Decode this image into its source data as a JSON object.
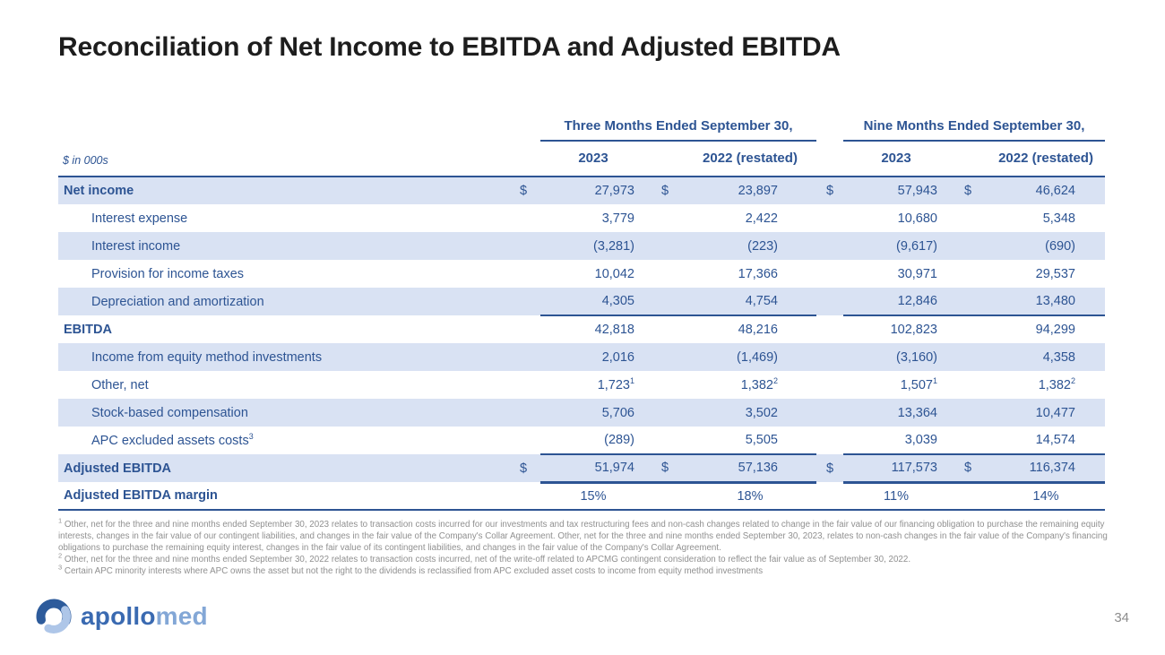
{
  "slide": {
    "title": "Reconciliation of Net Income to EBITDA and Adjusted EBITDA",
    "units_label": "$ in 000s",
    "page_number": "34"
  },
  "brand": {
    "logo_text_primary": "apollo",
    "logo_text_secondary": "med"
  },
  "colors": {
    "accent_blue": "#2d5493",
    "row_shade": "#d9e2f3",
    "title_text": "#1d1d1d",
    "footnote_gray": "#909090",
    "logo_dark": "#2d5b9b",
    "logo_light": "#aec6e8"
  },
  "table": {
    "group_headers": [
      "Three Months Ended September 30,",
      "Nine Months Ended September 30,"
    ],
    "year_headers": [
      "2023",
      "2022 (restated)",
      "2023",
      "2022 (restated)"
    ],
    "rows": [
      {
        "label": "Net income",
        "bold": true,
        "indent": false,
        "dollar": true,
        "values": [
          "27,973",
          "23,897",
          "57,943",
          "46,624"
        ],
        "sups": [
          "",
          "",
          "",
          ""
        ],
        "rule": "",
        "percent": false,
        "label_sup": ""
      },
      {
        "label": "Interest expense",
        "bold": false,
        "indent": true,
        "dollar": false,
        "values": [
          "3,779",
          "2,422",
          "10,680",
          "5,348"
        ],
        "sups": [
          "",
          "",
          "",
          ""
        ],
        "rule": "",
        "percent": false,
        "label_sup": ""
      },
      {
        "label": "Interest income",
        "bold": false,
        "indent": true,
        "dollar": false,
        "values": [
          "(3,281)",
          "(223)",
          "(9,617)",
          "(690)"
        ],
        "sups": [
          "",
          "",
          "",
          ""
        ],
        "rule": "",
        "percent": false,
        "label_sup": ""
      },
      {
        "label": "Provision for income taxes",
        "bold": false,
        "indent": true,
        "dollar": false,
        "values": [
          "10,042",
          "17,366",
          "30,971",
          "29,537"
        ],
        "sups": [
          "",
          "",
          "",
          ""
        ],
        "rule": "",
        "percent": false,
        "label_sup": ""
      },
      {
        "label": "Depreciation and amortization",
        "bold": false,
        "indent": true,
        "dollar": false,
        "values": [
          "4,305",
          "4,754",
          "12,846",
          "13,480"
        ],
        "sups": [
          "",
          "",
          "",
          ""
        ],
        "rule": "below",
        "percent": false,
        "label_sup": ""
      },
      {
        "label": "EBITDA",
        "bold": true,
        "indent": false,
        "dollar": false,
        "values": [
          "42,818",
          "48,216",
          "102,823",
          "94,299"
        ],
        "sups": [
          "",
          "",
          "",
          ""
        ],
        "rule": "",
        "percent": false,
        "label_sup": ""
      },
      {
        "label": "Income from equity method investments",
        "bold": false,
        "indent": true,
        "dollar": false,
        "values": [
          "2,016",
          "(1,469)",
          "(3,160)",
          "4,358"
        ],
        "sups": [
          "",
          "",
          "",
          ""
        ],
        "rule": "",
        "percent": false,
        "label_sup": ""
      },
      {
        "label": "Other, net",
        "bold": false,
        "indent": true,
        "dollar": false,
        "values": [
          "1,723",
          "1,382",
          "1,507",
          "1,382"
        ],
        "sups": [
          "1",
          "2",
          "1",
          "2"
        ],
        "rule": "",
        "percent": false,
        "label_sup": ""
      },
      {
        "label": "Stock-based compensation",
        "bold": false,
        "indent": true,
        "dollar": false,
        "values": [
          "5,706",
          "3,502",
          "13,364",
          "10,477"
        ],
        "sups": [
          "",
          "",
          "",
          ""
        ],
        "rule": "",
        "percent": false,
        "label_sup": ""
      },
      {
        "label": "APC excluded assets costs",
        "bold": false,
        "indent": true,
        "dollar": false,
        "values": [
          "(289)",
          "5,505",
          "3,039",
          "14,574"
        ],
        "sups": [
          "",
          "",
          "",
          ""
        ],
        "rule": "below",
        "percent": false,
        "label_sup": "3"
      },
      {
        "label": "Adjusted EBITDA",
        "bold": true,
        "indent": false,
        "dollar": true,
        "values": [
          "51,974",
          "57,136",
          "117,573",
          "116,374"
        ],
        "sups": [
          "",
          "",
          "",
          ""
        ],
        "rule": "total",
        "percent": false,
        "label_sup": ""
      },
      {
        "label": "Adjusted EBITDA margin",
        "bold": true,
        "indent": false,
        "dollar": false,
        "values": [
          "15%",
          "18%",
          "11%",
          "14%"
        ],
        "sups": [
          "",
          "",
          "",
          ""
        ],
        "rule": "",
        "percent": true,
        "label_sup": ""
      }
    ],
    "dollar_sign": "$",
    "footnotes": [
      {
        "marker": "1",
        "text": "Other, net for the three and nine months ended September 30, 2023 relates to transaction costs incurred for our investments and tax restructuring fees and non-cash changes related to change in the fair value of our financing obligation to purchase the remaining equity interests, changes in the fair value of our contingent liabilities, and changes in the fair value of the Company's Collar Agreement. Other, net for the three and nine months ended September 30, 2023, relates to non-cash changes in the fair value of the Company's financing obligations to purchase the remaining equity interest, changes in the fair value of its contingent liabilities, and changes in the fair value of the Company's Collar Agreement."
      },
      {
        "marker": "2",
        "text": "Other, net for the three and nine months ended September 30, 2022 relates to transaction costs incurred, net of the write-off related to APCMG contingent consideration to reflect the fair value as of September 30, 2022."
      },
      {
        "marker": "3",
        "text": "Certain APC minority interests where APC owns the asset but not the right to the dividends is reclassified from APC excluded asset costs to income from equity method investments"
      }
    ]
  }
}
